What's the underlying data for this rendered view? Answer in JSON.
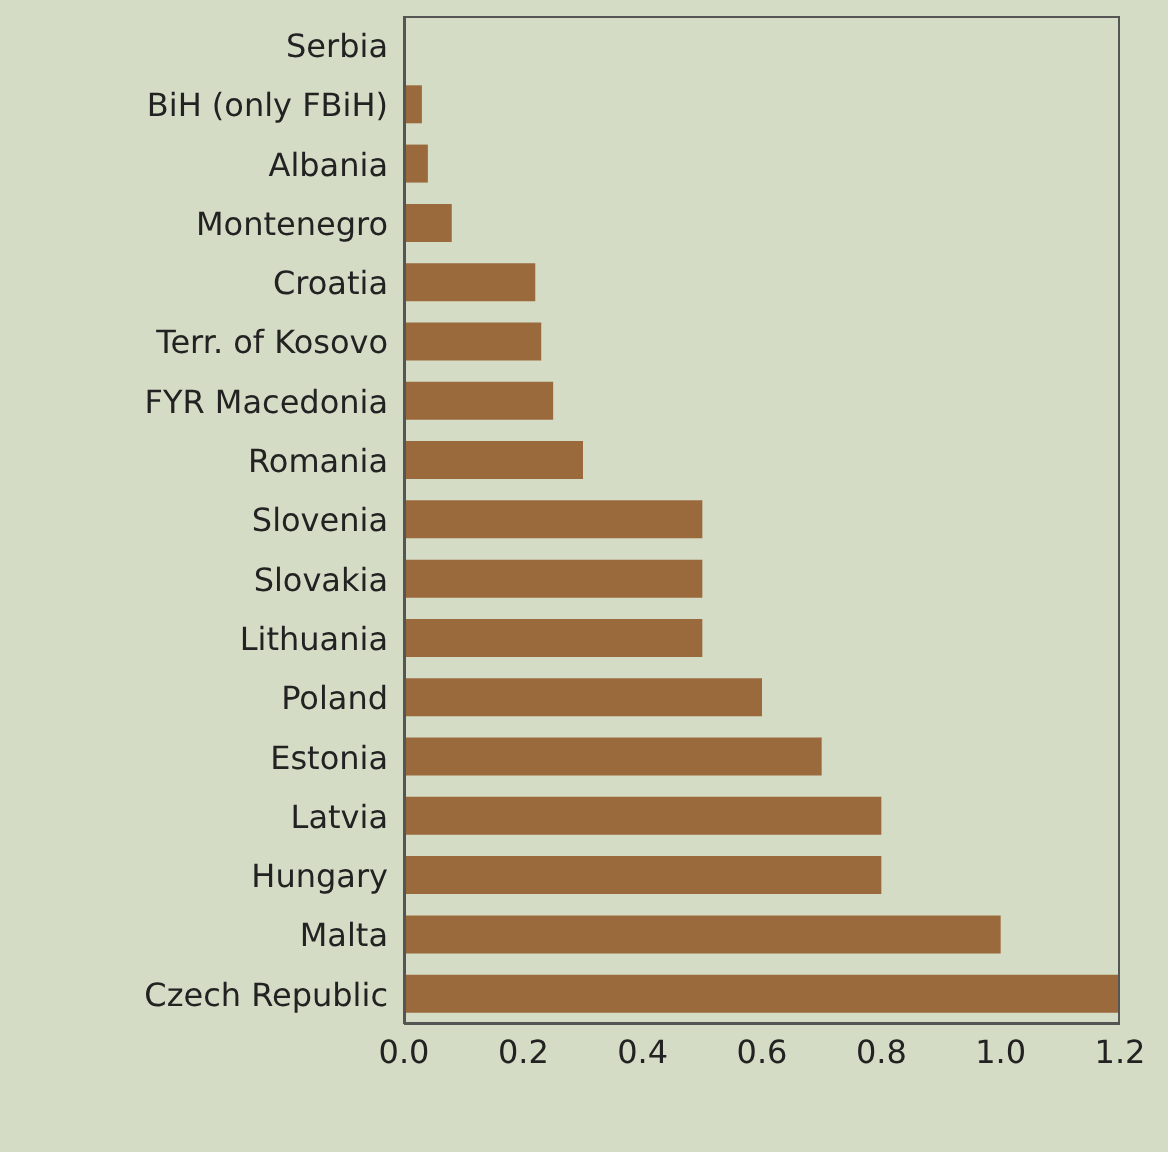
{
  "chart_data": {
    "type": "bar",
    "orientation": "horizontal",
    "categories": [
      "Serbia",
      "BiH (only FBiH)",
      "Albania",
      "Montenegro",
      "Croatia",
      "Terr. of Kosovo",
      "FYR Macedonia",
      "Romania",
      "Slovenia",
      "Slovakia",
      "Lithuania",
      "Poland",
      "Estonia",
      "Latvia",
      "Hungary",
      "Malta",
      "Czech Republic"
    ],
    "values": [
      0,
      0.03,
      0.04,
      0.08,
      0.22,
      0.23,
      0.25,
      0.3,
      0.5,
      0.5,
      0.5,
      0.6,
      0.7,
      0.8,
      0.8,
      1.0,
      1.2
    ],
    "color": "#9b6a3c",
    "xlim": [
      0,
      1.2
    ],
    "xticks": [
      {
        "value": 0,
        "label": "0.0"
      },
      {
        "value": 0.2,
        "label": "0.2"
      },
      {
        "value": 0.4,
        "label": "0.4"
      },
      {
        "value": 0.6,
        "label": "0.6"
      },
      {
        "value": 0.8,
        "label": "0.8"
      },
      {
        "value": 1,
        "label": "1.0"
      },
      {
        "value": 1.2,
        "label": "1.2"
      }
    ],
    "grid": false,
    "legend": false
  }
}
